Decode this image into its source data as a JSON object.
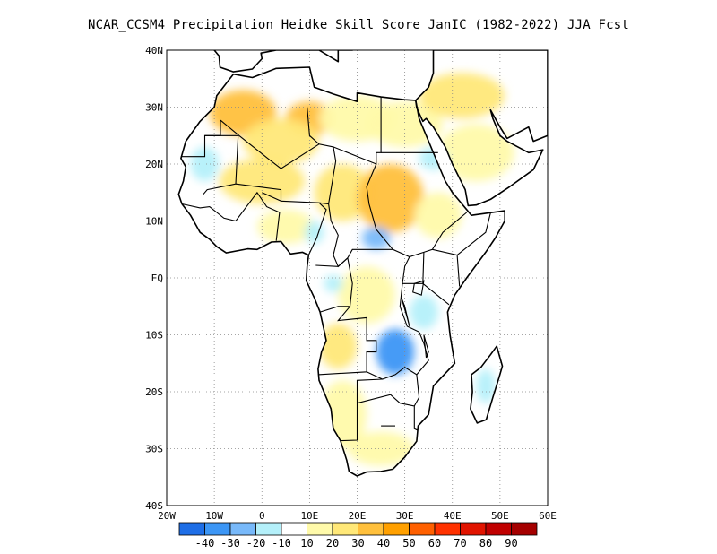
{
  "title": "NCAR_CCSM4  Precipitation Heidke Skill Score JanIC (1982-2022) JJA Fcst",
  "map": {
    "lon_range": [
      -20,
      60
    ],
    "lat_range": [
      -40,
      40
    ],
    "lon_ticks": [
      {
        "value": -20,
        "label": "20W"
      },
      {
        "value": -10,
        "label": "10W"
      },
      {
        "value": 0,
        "label": "0"
      },
      {
        "value": 10,
        "label": "10E"
      },
      {
        "value": 20,
        "label": "20E"
      },
      {
        "value": 30,
        "label": "30E"
      },
      {
        "value": 40,
        "label": "40E"
      },
      {
        "value": 50,
        "label": "50E"
      },
      {
        "value": 60,
        "label": "60E"
      }
    ],
    "lat_ticks": [
      {
        "value": 40,
        "label": "40N"
      },
      {
        "value": 30,
        "label": "30N"
      },
      {
        "value": 20,
        "label": "20N"
      },
      {
        "value": 10,
        "label": "10N"
      },
      {
        "value": 0,
        "label": "EQ"
      },
      {
        "value": -10,
        "label": "10S"
      },
      {
        "value": -20,
        "label": "20S"
      },
      {
        "value": -30,
        "label": "30S"
      },
      {
        "value": -40,
        "label": "40S"
      }
    ],
    "gridlines": "dotted"
  },
  "colorbar": {
    "colors": [
      "#1e6ee6",
      "#3c96f5",
      "#78b9fa",
      "#b4f0fa",
      "#ffffff",
      "#fffaaa",
      "#ffe878",
      "#ffc03c",
      "#ffa000",
      "#ff6000",
      "#ff3200",
      "#e11400",
      "#c00000",
      "#a50000"
    ],
    "labels": [
      "-40",
      "-30",
      "-20",
      "-10",
      "10",
      "20",
      "30",
      "40",
      "50",
      "60",
      "70",
      "80",
      "90"
    ]
  },
  "regions": {
    "positive": [
      {
        "name": "sahara-west",
        "lon": -4,
        "lat": 29,
        "rx": 7,
        "ry": 4,
        "level": 3
      },
      {
        "name": "sahara-central",
        "lon": 10,
        "lat": 28,
        "rx": 5,
        "ry": 3,
        "level": 3
      },
      {
        "name": "sahel-west",
        "lon": 0,
        "lat": 17,
        "rx": 9,
        "ry": 4,
        "level": 2
      },
      {
        "name": "sahara-north",
        "lon": 4,
        "lat": 24,
        "rx": 8,
        "ry": 4,
        "level": 2
      },
      {
        "name": "chad",
        "lon": 17,
        "lat": 15,
        "rx": 6,
        "ry": 5,
        "level": 2
      },
      {
        "name": "sudan",
        "lon": 27,
        "lat": 14,
        "rx": 7,
        "ry": 6,
        "level": 3
      },
      {
        "name": "egypt",
        "lon": 30,
        "lat": 27,
        "rx": 8,
        "ry": 4,
        "level": 1
      },
      {
        "name": "libya",
        "lon": 20,
        "lat": 28,
        "rx": 8,
        "ry": 4,
        "level": 1
      },
      {
        "name": "arabia-north",
        "lon": 42,
        "lat": 32,
        "rx": 9,
        "ry": 4,
        "level": 2
      },
      {
        "name": "arabia",
        "lon": 45,
        "lat": 22,
        "rx": 8,
        "ry": 5,
        "level": 1
      },
      {
        "name": "ethiopia",
        "lon": 37,
        "lat": 11,
        "rx": 5,
        "ry": 4,
        "level": 1
      },
      {
        "name": "angola",
        "lon": 16,
        "lat": -12,
        "rx": 4,
        "ry": 4,
        "level": 2
      },
      {
        "name": "namibia",
        "lon": 17,
        "lat": -24,
        "rx": 5,
        "ry": 6,
        "level": 1
      },
      {
        "name": "south-africa",
        "lon": 25,
        "lat": -30,
        "rx": 7,
        "ry": 3,
        "level": 1
      },
      {
        "name": "congo",
        "lon": 22,
        "lat": -3,
        "rx": 6,
        "ry": 5,
        "level": 1
      },
      {
        "name": "gulf-guinea",
        "lon": 5,
        "lat": 9,
        "rx": 6,
        "ry": 3,
        "level": 1
      }
    ],
    "negative": [
      {
        "name": "zambia",
        "lon": 28,
        "lat": -13,
        "rx": 4,
        "ry": 4,
        "level": 3
      },
      {
        "name": "mauritania",
        "lon": -12,
        "lat": 20,
        "rx": 3,
        "ry": 3,
        "level": 1
      },
      {
        "name": "nigeria",
        "lon": 11,
        "lat": 8,
        "rx": 2,
        "ry": 2,
        "level": 1
      },
      {
        "name": "car",
        "lon": 24,
        "lat": 7,
        "rx": 3,
        "ry": 2,
        "level": 2
      },
      {
        "name": "gabon",
        "lon": 15,
        "lat": -1,
        "rx": 2,
        "ry": 1.5,
        "level": 1
      },
      {
        "name": "tanzania",
        "lon": 34,
        "lat": -6,
        "rx": 3,
        "ry": 3,
        "level": 1
      },
      {
        "name": "madagascar",
        "lon": 47,
        "lat": -19,
        "rx": 2,
        "ry": 3,
        "level": 1
      },
      {
        "name": "red-sea",
        "lon": 36,
        "lat": 21,
        "rx": 3,
        "ry": 2,
        "level": 1
      }
    ]
  }
}
